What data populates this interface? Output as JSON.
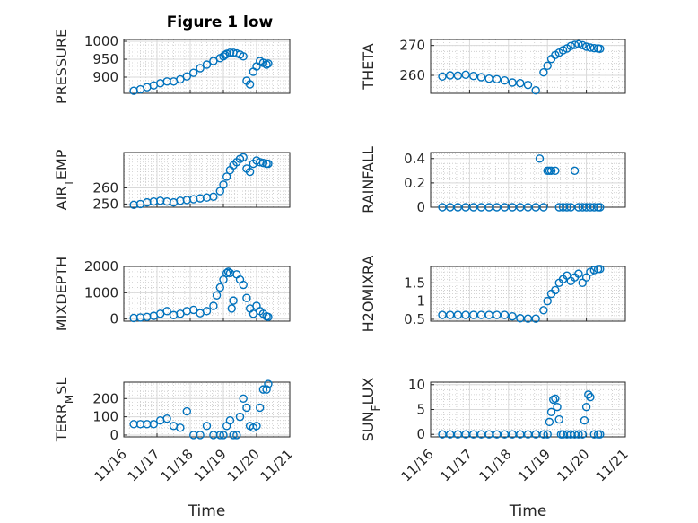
{
  "figure": {
    "title": "Figure 1 low"
  },
  "colors": {
    "marker": "#0072BD",
    "axis": "#262626"
  },
  "chart_data": [
    {
      "type": "scatter",
      "marker": "circle-open",
      "title": "Figure 1 low",
      "ylabel": "PRESSURE",
      "xlabel": "",
      "ylim": [
        855,
        1005
      ],
      "yticks": [
        1000,
        950,
        900
      ],
      "x": [
        16.3,
        16.5,
        16.7,
        16.9,
        17.1,
        17.3,
        17.5,
        17.7,
        17.9,
        18.1,
        18.3,
        18.5,
        18.7,
        18.9,
        19.0,
        19.05,
        19.1,
        19.2,
        19.3,
        19.4,
        19.5,
        19.6,
        19.7,
        19.8,
        19.9,
        20.0,
        20.1,
        20.2,
        20.3,
        20.35
      ],
      "y": [
        862,
        866,
        872,
        877,
        883,
        888,
        888,
        894,
        902,
        912,
        925,
        935,
        945,
        953,
        958,
        962,
        965,
        968,
        968,
        966,
        963,
        958,
        890,
        880,
        915,
        930,
        945,
        940,
        935,
        938
      ]
    },
    {
      "type": "scatter",
      "marker": "circle-open",
      "ylabel": "THETA",
      "xlabel": "",
      "ylim": [
        254,
        272
      ],
      "yticks": [
        270,
        260
      ],
      "x": [
        16.3,
        16.5,
        16.7,
        16.9,
        17.1,
        17.3,
        17.5,
        17.7,
        17.9,
        18.1,
        18.3,
        18.5,
        18.7,
        18.9,
        19.0,
        19.1,
        19.2,
        19.3,
        19.4,
        19.5,
        19.6,
        19.7,
        19.8,
        19.9,
        20.0,
        20.1,
        20.2,
        20.3,
        20.35
      ],
      "y": [
        259.6,
        260.0,
        259.9,
        260.2,
        259.8,
        259.4,
        258.9,
        258.7,
        258.3,
        257.6,
        257.4,
        256.8,
        255.0,
        261.0,
        263.2,
        265.5,
        266.8,
        267.6,
        268.4,
        269.0,
        269.8,
        270.2,
        270.4,
        270.1,
        269.6,
        269.3,
        269.1,
        269.0,
        268.9
      ]
    },
    {
      "type": "scatter",
      "marker": "circle-open",
      "ylabel": "AIR_TEMP",
      "xlabel": "",
      "ylim": [
        248,
        282
      ],
      "yticks": [
        260,
        250
      ],
      "x": [
        16.3,
        16.5,
        16.7,
        16.9,
        17.1,
        17.3,
        17.5,
        17.7,
        17.9,
        18.1,
        18.3,
        18.5,
        18.7,
        18.9,
        19.0,
        19.1,
        19.2,
        19.3,
        19.4,
        19.5,
        19.6,
        19.7,
        19.8,
        19.9,
        20.0,
        20.1,
        20.2,
        20.3,
        20.35
      ],
      "y": [
        249.5,
        250.0,
        251.0,
        251.5,
        252.0,
        251.5,
        251.0,
        252.0,
        252.5,
        253.0,
        253.5,
        254.0,
        254.5,
        258.0,
        262.0,
        267.0,
        271.0,
        274.0,
        276.0,
        278.0,
        279.0,
        272.0,
        270.0,
        275.0,
        277.0,
        276.0,
        275.5,
        275.0,
        275.0
      ]
    },
    {
      "type": "scatter",
      "marker": "circle-open",
      "ylabel": "RAINFALL",
      "xlabel": "",
      "ylim": [
        0,
        0.45
      ],
      "yticks": [
        0.4,
        0.2,
        0
      ],
      "x": [
        16.3,
        16.5,
        16.7,
        16.9,
        17.1,
        17.3,
        17.5,
        17.7,
        17.9,
        18.1,
        18.3,
        18.5,
        18.7,
        18.8,
        18.9,
        19.0,
        19.05,
        19.1,
        19.2,
        19.3,
        19.4,
        19.5,
        19.6,
        19.7,
        19.8,
        19.9,
        20.0,
        20.1,
        20.2,
        20.3,
        20.35
      ],
      "y": [
        0,
        0,
        0,
        0,
        0,
        0,
        0,
        0,
        0,
        0,
        0,
        0,
        0,
        0.4,
        0,
        0.3,
        0.3,
        0.3,
        0.3,
        0,
        0,
        0,
        0,
        0.3,
        0,
        0,
        0,
        0,
        0,
        0,
        0
      ]
    },
    {
      "type": "scatter",
      "marker": "circle-open",
      "ylabel": "MIXDEPTH",
      "xlabel": "",
      "ylim": [
        -80,
        2000
      ],
      "yticks": [
        2000,
        1000,
        0
      ],
      "x": [
        16.3,
        16.5,
        16.7,
        16.9,
        17.1,
        17.3,
        17.5,
        17.7,
        17.9,
        18.1,
        18.3,
        18.5,
        18.7,
        18.8,
        18.9,
        19.0,
        19.1,
        19.15,
        19.2,
        19.25,
        19.3,
        19.4,
        19.5,
        19.6,
        19.7,
        19.8,
        19.9,
        20.0,
        20.1,
        20.2,
        20.3,
        20.35
      ],
      "y": [
        40,
        60,
        80,
        120,
        200,
        300,
        150,
        200,
        300,
        350,
        220,
        300,
        500,
        900,
        1200,
        1500,
        1750,
        1800,
        1750,
        400,
        700,
        1700,
        1500,
        1300,
        800,
        400,
        200,
        500,
        300,
        200,
        100,
        80
      ]
    },
    {
      "type": "scatter",
      "marker": "circle-open",
      "ylabel": "H2OMIXRA",
      "xlabel": "",
      "ylim": [
        0.45,
        1.95
      ],
      "yticks": [
        1.5,
        1,
        0.5
      ],
      "x": [
        16.3,
        16.5,
        16.7,
        16.9,
        17.1,
        17.3,
        17.5,
        17.7,
        17.9,
        18.1,
        18.3,
        18.5,
        18.7,
        18.9,
        19.0,
        19.1,
        19.2,
        19.3,
        19.4,
        19.5,
        19.6,
        19.7,
        19.8,
        19.9,
        20.0,
        20.1,
        20.2,
        20.3,
        20.35
      ],
      "y": [
        0.62,
        0.62,
        0.62,
        0.62,
        0.62,
        0.62,
        0.62,
        0.62,
        0.62,
        0.58,
        0.53,
        0.52,
        0.52,
        0.75,
        1.0,
        1.2,
        1.3,
        1.5,
        1.6,
        1.7,
        1.55,
        1.65,
        1.75,
        1.5,
        1.65,
        1.8,
        1.85,
        1.88,
        1.88
      ]
    },
    {
      "type": "scatter",
      "marker": "circle-open",
      "ylabel": "TERR_MSL",
      "xlabel": "Time",
      "ylim": [
        -10,
        290
      ],
      "yticks": [
        200,
        100,
        0
      ],
      "xticks": [
        "11/16",
        "11/17",
        "11/18",
        "11/19",
        "11/20",
        "11/21"
      ],
      "x": [
        16.3,
        16.5,
        16.7,
        16.9,
        17.1,
        17.3,
        17.5,
        17.7,
        17.9,
        18.1,
        18.3,
        18.5,
        18.7,
        18.9,
        19.0,
        19.1,
        19.2,
        19.3,
        19.4,
        19.5,
        19.6,
        19.7,
        19.8,
        19.9,
        20.0,
        20.1,
        20.2,
        20.3,
        20.35
      ],
      "y": [
        60,
        60,
        60,
        60,
        80,
        90,
        50,
        40,
        130,
        0,
        0,
        50,
        0,
        0,
        0,
        50,
        80,
        0,
        0,
        100,
        200,
        150,
        50,
        40,
        50,
        150,
        250,
        250,
        280
      ]
    },
    {
      "type": "scatter",
      "marker": "circle-open",
      "ylabel": "SUN_FLUX",
      "xlabel": "Time",
      "ylim": [
        -0.5,
        10.5
      ],
      "yticks": [
        10,
        5,
        0
      ],
      "xticks": [
        "11/16",
        "11/17",
        "11/18",
        "11/19",
        "11/20",
        "11/21"
      ],
      "x": [
        16.3,
        16.5,
        16.7,
        16.9,
        17.1,
        17.3,
        17.5,
        17.7,
        17.9,
        18.1,
        18.3,
        18.5,
        18.7,
        18.9,
        19.0,
        19.05,
        19.1,
        19.15,
        19.2,
        19.25,
        19.3,
        19.35,
        19.4,
        19.5,
        19.6,
        19.7,
        19.8,
        19.9,
        19.95,
        20.0,
        20.05,
        20.1,
        20.2,
        20.3,
        20.35
      ],
      "y": [
        0,
        0,
        0,
        0,
        0,
        0,
        0,
        0,
        0,
        0,
        0,
        0,
        0,
        0,
        0,
        2.5,
        4.5,
        7.0,
        7.2,
        5.5,
        3.0,
        0,
        0,
        0,
        0,
        0,
        0,
        0,
        2.8,
        5.5,
        8.0,
        7.5,
        0,
        0,
        0
      ]
    }
  ]
}
